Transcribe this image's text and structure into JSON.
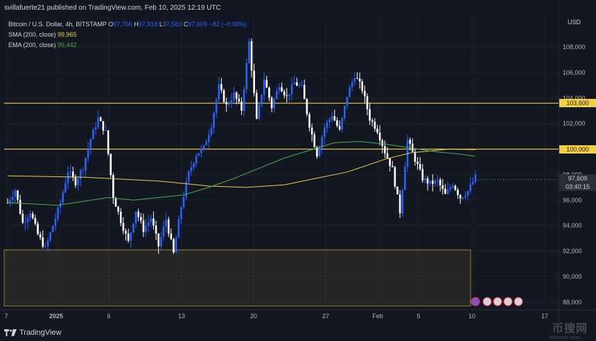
{
  "header": {
    "published": "svillafuerte21 published on TradingView.com, Feb 10, 2025 12:19 UTC"
  },
  "legend": {
    "symbol": "Bitcoin / U.S. Dollar, 4h, BITSTAMP",
    "o_label": "O",
    "o": "97,766",
    "h_label": "H",
    "h": "97,818",
    "l_label": "L",
    "l": "97,583",
    "c_label": "C",
    "c": "97,609",
    "change": "−82 (−0.08%)",
    "sma_label": "SMA (200, close)",
    "sma_value": "99,965",
    "ema_label": "EMA (200, close)",
    "ema_value": "99,442"
  },
  "currency": "USD",
  "footer": {
    "brand": "TradingView"
  },
  "watermark": {
    "main": "币搜网",
    "sub": "bitsoush.news"
  },
  "price_tags": {
    "level_103600": "103,600",
    "level_100000": "100,000",
    "last_price": "97,609",
    "countdown": "03:40:15"
  },
  "colors": {
    "up": "#2962ff",
    "down": "#ffffff",
    "sma": "#f4d03f",
    "ema": "#4caf50",
    "level": "#f4d03f",
    "zone": "#f4d03f",
    "background": "#131722"
  },
  "chart_data": {
    "type": "candlestick",
    "ylim": [
      87500,
      110500
    ],
    "y_ticks": [
      88000,
      90000,
      92000,
      94000,
      96000,
      98000,
      100000,
      102000,
      104000,
      106000,
      108000
    ],
    "x_tick_labels": [
      "7",
      "2025",
      "6",
      "13",
      "20",
      "27",
      "Feb",
      "5",
      "10",
      "17"
    ],
    "horizontal_levels": [
      103600,
      100000
    ],
    "zone": {
      "low": 87700,
      "high": 92100
    },
    "price_path": [
      [
        0,
        95800
      ],
      [
        3,
        96800
      ],
      [
        6,
        94200
      ],
      [
        9,
        95100
      ],
      [
        12,
        93300
      ],
      [
        15,
        92200
      ],
      [
        18,
        94000
      ],
      [
        21,
        95800
      ],
      [
        24,
        98300
      ],
      [
        27,
        97400
      ],
      [
        30,
        98600
      ],
      [
        33,
        100800
      ],
      [
        36,
        102400
      ],
      [
        39,
        101300
      ],
      [
        42,
        96300
      ],
      [
        45,
        94400
      ],
      [
        48,
        92700
      ],
      [
        51,
        95200
      ],
      [
        54,
        93700
      ],
      [
        57,
        94600
      ],
      [
        60,
        92400
      ],
      [
        63,
        94500
      ],
      [
        66,
        91800
      ],
      [
        69,
        95500
      ],
      [
        72,
        98100
      ],
      [
        75,
        99600
      ],
      [
        78,
        100100
      ],
      [
        81,
        101900
      ],
      [
        84,
        104900
      ],
      [
        87,
        103400
      ],
      [
        90,
        104300
      ],
      [
        93,
        103100
      ],
      [
        96,
        108400
      ],
      [
        99,
        102200
      ],
      [
        102,
        105500
      ],
      [
        105,
        103300
      ],
      [
        108,
        105100
      ],
      [
        111,
        104100
      ],
      [
        114,
        105200
      ],
      [
        117,
        104800
      ],
      [
        120,
        101900
      ],
      [
        123,
        99600
      ],
      [
        126,
        101700
      ],
      [
        129,
        102700
      ],
      [
        132,
        101400
      ],
      [
        135,
        104200
      ],
      [
        138,
        105800
      ],
      [
        141,
        104700
      ],
      [
        144,
        102400
      ],
      [
        147,
        101500
      ],
      [
        150,
        99800
      ],
      [
        153,
        98400
      ],
      [
        156,
        95100
      ],
      [
        159,
        100700
      ],
      [
        162,
        99200
      ],
      [
        165,
        97700
      ],
      [
        168,
        97300
      ],
      [
        171,
        97500
      ],
      [
        174,
        96400
      ],
      [
        177,
        97300
      ],
      [
        180,
        96200
      ],
      [
        183,
        96700
      ],
      [
        186,
        97800
      ]
    ],
    "sma_points": [
      [
        0,
        97900
      ],
      [
        30,
        97800
      ],
      [
        60,
        97500
      ],
      [
        70,
        97300
      ],
      [
        80,
        97100
      ],
      [
        95,
        97000
      ],
      [
        110,
        97200
      ],
      [
        120,
        97600
      ],
      [
        135,
        98200
      ],
      [
        150,
        99200
      ],
      [
        160,
        99700
      ],
      [
        175,
        100000
      ],
      [
        186,
        99965
      ]
    ],
    "ema_points": [
      [
        0,
        95800
      ],
      [
        20,
        95600
      ],
      [
        30,
        95900
      ],
      [
        40,
        96200
      ],
      [
        50,
        96000
      ],
      [
        60,
        96200
      ],
      [
        70,
        96400
      ],
      [
        80,
        97000
      ],
      [
        90,
        97700
      ],
      [
        100,
        98500
      ],
      [
        110,
        99300
      ],
      [
        120,
        99900
      ],
      [
        130,
        100500
      ],
      [
        140,
        100600
      ],
      [
        150,
        100400
      ],
      [
        160,
        100100
      ],
      [
        170,
        99800
      ],
      [
        180,
        99600
      ],
      [
        186,
        99442
      ]
    ]
  }
}
